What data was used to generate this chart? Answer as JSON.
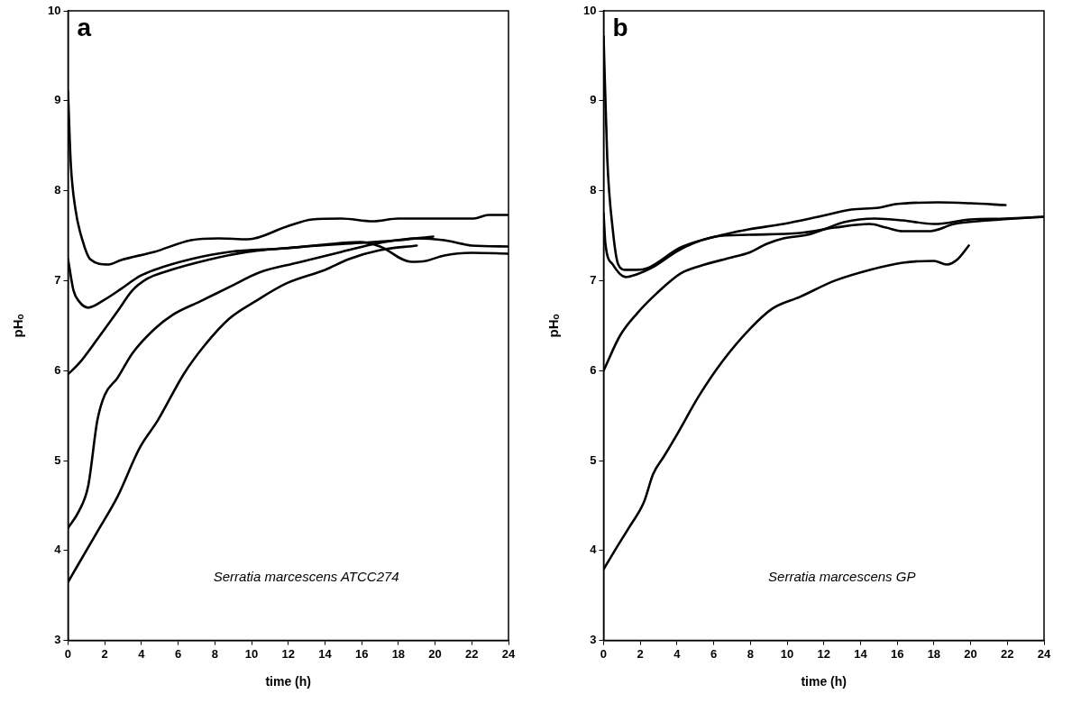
{
  "chart_data": [
    {
      "type": "line",
      "xlabel": "time (h)",
      "ylabel": "pHₒ",
      "annotations": [
        "a",
        "Serratia marcescens ATCC274"
      ],
      "xlim": [
        0,
        24
      ],
      "xticks": [
        0,
        2,
        4,
        6,
        8,
        10,
        12,
        14,
        16,
        18,
        20,
        22,
        24
      ],
      "ylim": [
        3,
        10
      ],
      "yticks": [
        3,
        4,
        5,
        6,
        7,
        8,
        9,
        10
      ],
      "grid": false,
      "legend": false,
      "marker": "none",
      "line_style": "solid",
      "series": [
        {
          "color": "#000000",
          "x": [
            0,
            0.15,
            0.4,
            0.8,
            1.2,
            2.2,
            2.9,
            4.7,
            6.7,
            8.2,
            9.8,
            11.9,
            13.3,
            14.9,
            16.6,
            18,
            22.1,
            22.9,
            24
          ],
          "values": [
            9.1,
            8.3,
            7.8,
            7.44,
            7.24,
            7.18,
            7.23,
            7.32,
            7.45,
            7.47,
            7.46,
            7.6,
            7.68,
            7.69,
            7.66,
            7.69,
            7.69,
            7.73,
            7.73
          ]
        },
        {
          "color": "#000000",
          "x": [
            0,
            0.3,
            0.6,
            1.1,
            2,
            2.9,
            3.9,
            4.7,
            6.7,
            8.8,
            11.9,
            13.9,
            15.9,
            17,
            18.7,
            19.5,
            20.5,
            22,
            24
          ],
          "values": [
            7.24,
            6.89,
            6.77,
            6.7,
            6.79,
            6.91,
            7.05,
            7.12,
            7.24,
            7.32,
            7.36,
            7.4,
            7.43,
            7.38,
            7.21,
            7.22,
            7.28,
            7.31,
            7.3
          ]
        },
        {
          "color": "#000000",
          "x": [
            0,
            0.6,
            1.6,
            2.7,
            3.5,
            4.3,
            5.3,
            7.8,
            9.8,
            12.9,
            15.9,
            18,
            19.9
          ],
          "values": [
            5.96,
            6.08,
            6.35,
            6.66,
            6.89,
            7.02,
            7.1,
            7.24,
            7.32,
            7.38,
            7.42,
            7.45,
            7.49
          ]
        },
        {
          "color": "#000000",
          "x": [
            0,
            0.6,
            1.1,
            1.6,
            2,
            2.7,
            3.5,
            4.7,
            5.7,
            7.2,
            8.8,
            10.4,
            12.5,
            14.9,
            17,
            19,
            20.5,
            22,
            24
          ],
          "values": [
            4.25,
            4.44,
            4.72,
            5.45,
            5.73,
            5.92,
            6.19,
            6.46,
            6.62,
            6.77,
            6.93,
            7.09,
            7.2,
            7.32,
            7.42,
            7.47,
            7.45,
            7.39,
            7.38
          ]
        },
        {
          "color": "#000000",
          "x": [
            0,
            0.6,
            1.6,
            2.7,
            3.9,
            4.9,
            6.3,
            7.4,
            8.8,
            10.2,
            11.9,
            14,
            15.3,
            17,
            19
          ],
          "values": [
            3.65,
            3.86,
            4.21,
            4.6,
            5.14,
            5.45,
            5.96,
            6.27,
            6.58,
            6.77,
            6.97,
            7.12,
            7.24,
            7.34,
            7.39
          ]
        }
      ]
    },
    {
      "type": "line",
      "xlabel": "time (h)",
      "ylabel": "pHₒ",
      "annotations": [
        "b",
        "Serratia marcescens GP"
      ],
      "xlim": [
        0,
        24
      ],
      "xticks": [
        0,
        2,
        4,
        6,
        8,
        10,
        12,
        14,
        16,
        18,
        20,
        22,
        24
      ],
      "ylim": [
        3,
        10
      ],
      "yticks": [
        3,
        4,
        5,
        6,
        7,
        8,
        9,
        10
      ],
      "grid": false,
      "legend": false,
      "marker": "none",
      "line_style": "solid",
      "series": [
        {
          "color": "#000000",
          "x": [
            0,
            0.2,
            0.5,
            0.8,
            1.2,
            1.8,
            2.4,
            4.2,
            6.1,
            7.9,
            9.8,
            11.7,
            13.5,
            15,
            15.9,
            18.2,
            20,
            21.9
          ],
          "values": [
            9.72,
            8.36,
            7.57,
            7.18,
            7.12,
            7.12,
            7.14,
            7.37,
            7.49,
            7.57,
            7.63,
            7.71,
            7.79,
            7.81,
            7.85,
            7.87,
            7.86,
            7.84
          ]
        },
        {
          "color": "#000000",
          "x": [
            0,
            0.1,
            0.5,
            1.2,
            1.8,
            2.6,
            4.2,
            6.1,
            7.9,
            10.7,
            12.6,
            14.5,
            15.4,
            16.3,
            17.8,
            19.1,
            21,
            24
          ],
          "values": [
            7.75,
            7.41,
            7.18,
            7.04,
            7.07,
            7.14,
            7.35,
            7.49,
            7.51,
            7.53,
            7.59,
            7.63,
            7.59,
            7.55,
            7.55,
            7.63,
            7.67,
            7.71
          ]
        },
        {
          "color": "#000000",
          "x": [
            0,
            0.9,
            1.8,
            2.9,
            4.2,
            5.2,
            7,
            7.9,
            8.9,
            9.8,
            11.1,
            12,
            13.1,
            14.8,
            16.3,
            18,
            20,
            21.9,
            24
          ],
          "values": [
            6.0,
            6.39,
            6.63,
            6.86,
            7.08,
            7.16,
            7.26,
            7.31,
            7.41,
            7.47,
            7.51,
            7.57,
            7.65,
            7.69,
            7.67,
            7.63,
            7.68,
            7.69,
            7.71
          ]
        },
        {
          "color": "#000000",
          "x": [
            0,
            0.7,
            1.4,
            2.2,
            2.7,
            3.3,
            4,
            5.2,
            6.5,
            8,
            9.2,
            10.7,
            12.6,
            14.5,
            16.3,
            18,
            18.7,
            19.3,
            19.9
          ],
          "values": [
            3.79,
            4.03,
            4.26,
            4.54,
            4.85,
            5.05,
            5.29,
            5.72,
            6.11,
            6.47,
            6.69,
            6.82,
            7.0,
            7.12,
            7.2,
            7.22,
            7.18,
            7.24,
            7.39
          ]
        }
      ]
    }
  ]
}
